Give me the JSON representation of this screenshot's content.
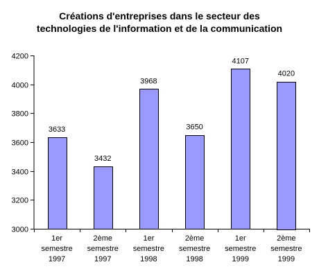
{
  "chart_data": {
    "type": "bar",
    "title_lines": [
      "Créations d'entreprises dans le secteur des",
      "technologies de l'information et de la communication"
    ],
    "categories": [
      [
        "1er",
        "semestre",
        "1997"
      ],
      [
        "2ème",
        "semestre",
        "1997"
      ],
      [
        "1er",
        "semestre",
        "1998"
      ],
      [
        "2ème",
        "semestre",
        "1998"
      ],
      [
        "1er",
        "semestre",
        "1999"
      ],
      [
        "2ème",
        "semestre",
        "1999"
      ]
    ],
    "values": [
      3633,
      3432,
      3968,
      3650,
      4107,
      4020
    ],
    "value_labels": [
      "3633",
      "3432",
      "3968",
      "3650",
      "4107",
      "4020"
    ],
    "ylim": [
      3000,
      4200
    ],
    "y_ticks": [
      "3000",
      "3200",
      "3400",
      "3600",
      "3800",
      "4000",
      "4200"
    ],
    "xlabel": "",
    "ylabel": "",
    "grid": false,
    "legend": "none",
    "bar_color": "#9999ff",
    "bar_outline_color": "#000000"
  }
}
